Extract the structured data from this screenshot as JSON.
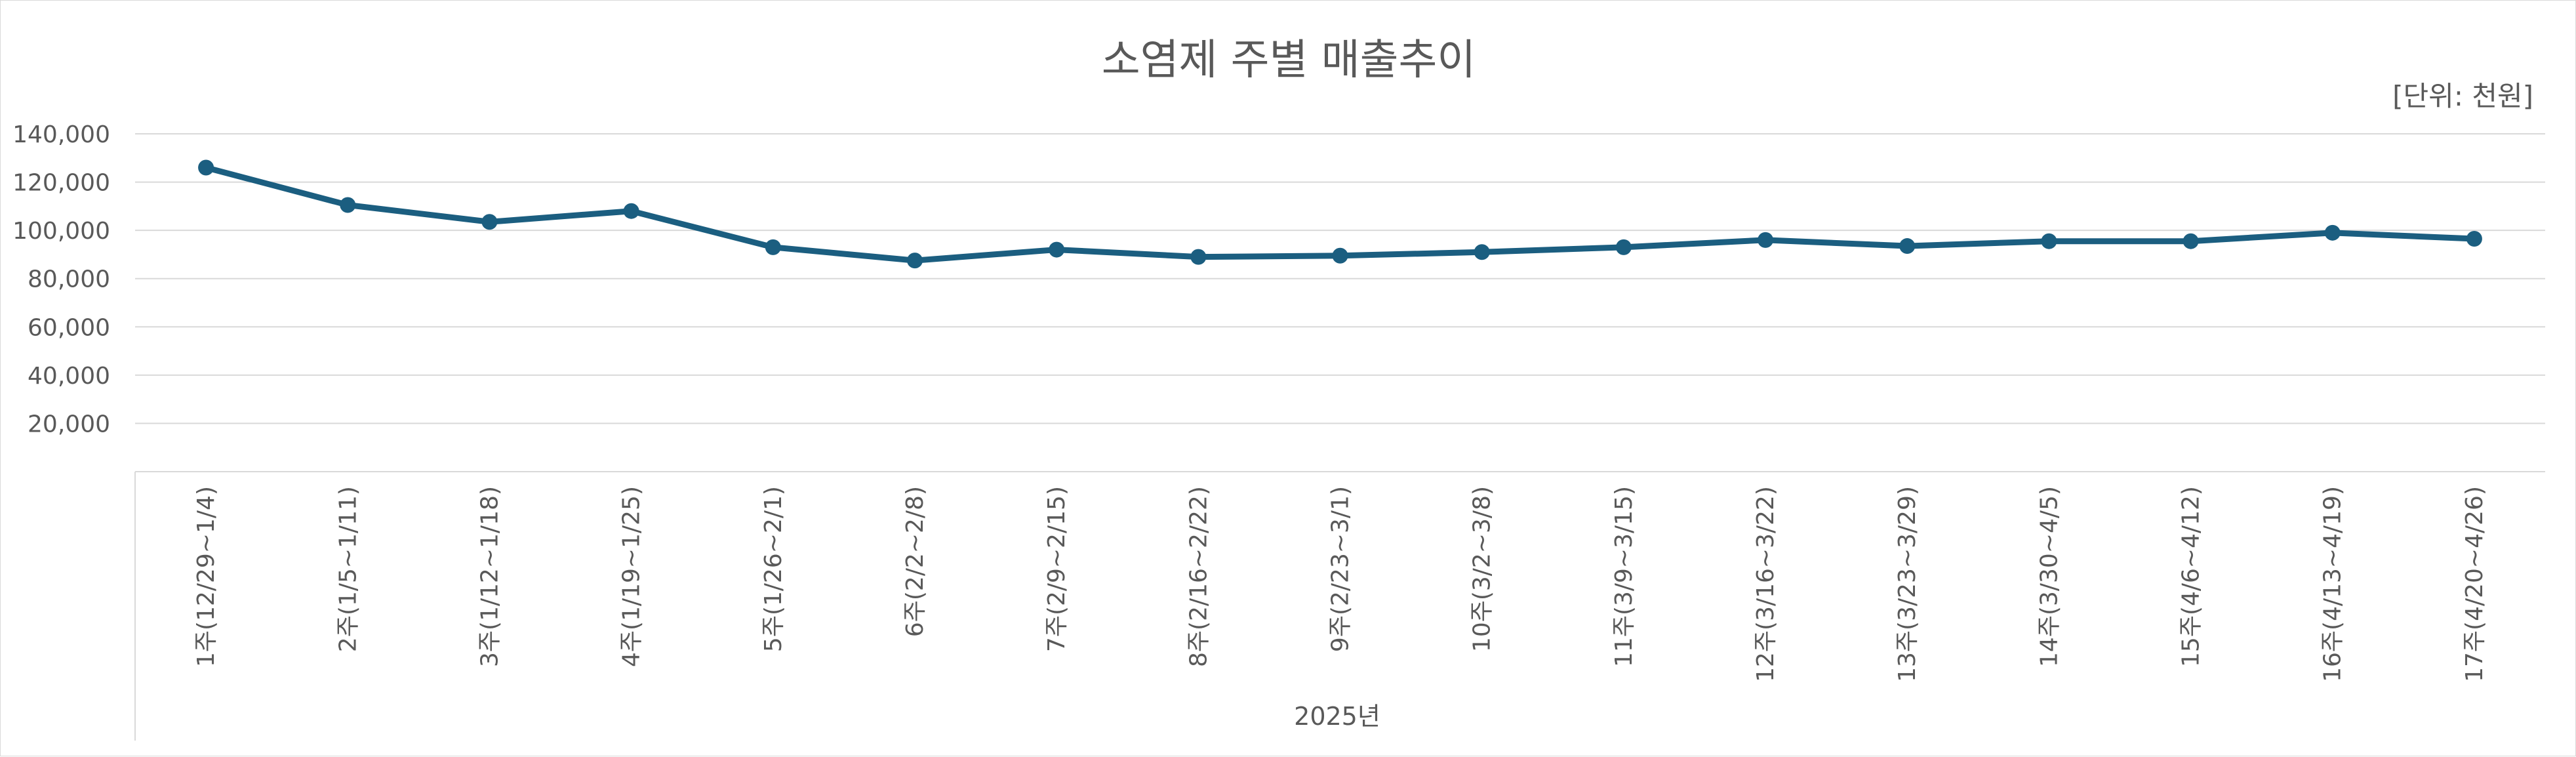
{
  "chart_data": {
    "type": "line",
    "title": "소염제 주별 매출추이",
    "unit_label": "[단위: 천원]",
    "xlabel": "2025년",
    "ylabel": "",
    "ylim": [
      0,
      140000
    ],
    "ytick_values": [
      20000,
      40000,
      60000,
      80000,
      100000,
      120000,
      140000
    ],
    "ytick_labels": [
      "20,000",
      "40,000",
      "60,000",
      "80,000",
      "100,000",
      "120,000",
      "140,000"
    ],
    "grid": true,
    "legend": "none",
    "categories": [
      "1주(12/29~1/4)",
      "2주(1/5~1/11)",
      "3주(1/12~1/18)",
      "4주(1/19~1/25)",
      "5주(1/26~2/1)",
      "6주(2/2~2/8)",
      "7주(2/9~2/15)",
      "8주(2/16~2/22)",
      "9주(2/23~3/1)",
      "10주(3/2~3/8)",
      "11주(3/9~3/15)",
      "12주(3/16~3/22)",
      "13주(3/23~3/29)",
      "14주(3/30~4/5)",
      "15주(4/6~4/12)",
      "16주(4/13~4/19)",
      "17주(4/20~4/26)"
    ],
    "series": [
      {
        "values": [
          126000,
          110500,
          103500,
          108000,
          93000,
          87500,
          92000,
          89000,
          89500,
          91000,
          93000,
          96000,
          93500,
          95500,
          95500,
          99000,
          96500
        ],
        "color": "#1b5e80"
      }
    ]
  }
}
